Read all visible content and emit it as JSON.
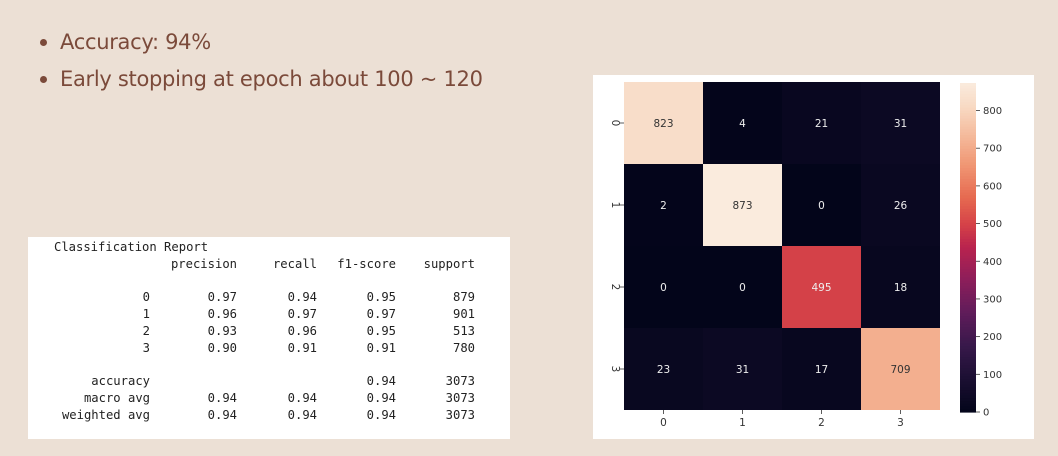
{
  "slide": {
    "bullets": [
      "Accuracy: 94%",
      "Early stopping at epoch about 100 ~ 120"
    ],
    "text_color": "#7b4a3a",
    "background": "#ece0d5"
  },
  "report": {
    "title": "Classification Report",
    "headers": [
      "",
      "precision",
      "recall",
      "f1-score",
      "support"
    ],
    "rows": [
      [
        "0",
        "0.97",
        "0.94",
        "0.95",
        "879"
      ],
      [
        "1",
        "0.96",
        "0.97",
        "0.97",
        "901"
      ],
      [
        "2",
        "0.93",
        "0.96",
        "0.95",
        "513"
      ],
      [
        "3",
        "0.90",
        "0.91",
        "0.91",
        "780"
      ]
    ],
    "summary": [
      [
        "accuracy",
        "",
        "",
        "0.94",
        "3073"
      ],
      [
        "macro avg",
        "0.94",
        "0.94",
        "0.94",
        "3073"
      ],
      [
        "weighted avg",
        "0.94",
        "0.94",
        "0.94",
        "3073"
      ]
    ]
  },
  "chart_data": {
    "type": "heatmap",
    "x_labels": [
      "0",
      "1",
      "2",
      "3"
    ],
    "y_labels": [
      "0",
      "1",
      "2",
      "3"
    ],
    "values": [
      [
        823,
        4,
        21,
        31
      ],
      [
        2,
        873,
        0,
        26
      ],
      [
        0,
        0,
        495,
        18
      ],
      [
        23,
        31,
        17,
        709
      ]
    ],
    "colorbar": {
      "min": 0,
      "max": 873,
      "ticks": [
        0,
        100,
        200,
        300,
        400,
        500,
        600,
        700,
        800
      ]
    },
    "colormap": "rocket",
    "annotations": true
  }
}
